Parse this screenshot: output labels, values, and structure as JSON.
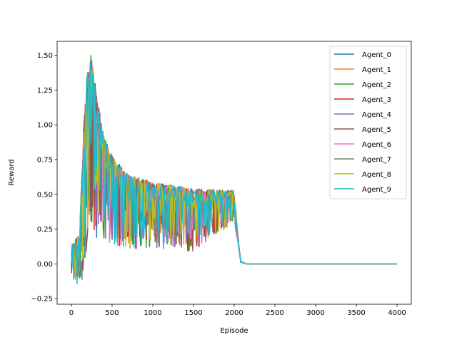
{
  "chart_data": {
    "type": "line",
    "xlabel": "Episode",
    "ylabel": "Reward",
    "xlim": [
      -175,
      4175
    ],
    "ylim": [
      -0.29,
      1.6
    ],
    "x_ticks": [
      0,
      500,
      1000,
      1500,
      2000,
      2500,
      3000,
      3500,
      4000
    ],
    "y_ticks": [
      -0.25,
      0.0,
      0.25,
      0.5,
      0.75,
      1.0,
      1.25,
      1.5
    ],
    "x_tick_labels": [
      "0",
      "500",
      "1000",
      "1500",
      "2000",
      "2500",
      "3000",
      "3500",
      "4000"
    ],
    "y_tick_labels": [
      "−0.25",
      "0.00",
      "0.25",
      "0.50",
      "0.75",
      "1.00",
      "1.25",
      "1.50"
    ],
    "grid": false,
    "legend_position": "top-right",
    "series_profile": {
      "x": [
        0,
        100,
        150,
        200,
        250,
        300,
        400,
        500,
        700,
        1000,
        1500,
        2000,
        2030,
        2080,
        2150,
        4000
      ],
      "upper": [
        0.13,
        0.22,
        1.0,
        1.43,
        1.52,
        1.25,
        0.92,
        0.78,
        0.64,
        0.59,
        0.54,
        0.53,
        0.3,
        0.02,
        0.0,
        0.0
      ],
      "lower": [
        -0.07,
        -0.21,
        -0.05,
        0.18,
        0.28,
        0.19,
        0.15,
        0.12,
        0.11,
        0.11,
        0.09,
        0.3,
        0.2,
        0.01,
        0.0,
        0.0
      ]
    },
    "series": [
      {
        "name": "Agent_0",
        "color": "#1f77b4"
      },
      {
        "name": "Agent_1",
        "color": "#ff7f0e"
      },
      {
        "name": "Agent_2",
        "color": "#2ca02c"
      },
      {
        "name": "Agent_3",
        "color": "#d62728"
      },
      {
        "name": "Agent_4",
        "color": "#9467bd"
      },
      {
        "name": "Agent_5",
        "color": "#8c564b"
      },
      {
        "name": "Agent_6",
        "color": "#e377c2"
      },
      {
        "name": "Agent_7",
        "color": "#7f7f7f"
      },
      {
        "name": "Agent_8",
        "color": "#bcbd22"
      },
      {
        "name": "Agent_9",
        "color": "#17becf"
      }
    ]
  }
}
